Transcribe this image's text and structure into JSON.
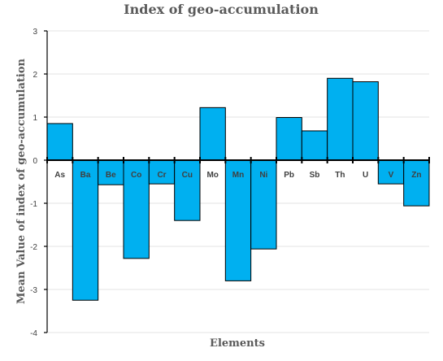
{
  "chart_data": {
    "type": "bar",
    "title": "Index of geo-accumulation",
    "xlabel": "Elements",
    "ylabel": "Mean Value of index of geo-accumulation",
    "categories": [
      "As",
      "Ba",
      "Be",
      "Co",
      "Cr",
      "Cu",
      "Mo",
      "Mn",
      "Ni",
      "Pb",
      "Sb",
      "Th",
      "U",
      "V",
      "Zn"
    ],
    "values": [
      0.85,
      -3.25,
      -0.57,
      -2.28,
      -0.55,
      -1.4,
      1.22,
      -2.8,
      -2.06,
      0.99,
      0.68,
      1.9,
      1.82,
      -0.55,
      -1.06
    ],
    "ylim": [
      -4,
      3
    ],
    "yticks": [
      "3",
      "2",
      "1",
      "0",
      "-1",
      "-2",
      "-3",
      "-4"
    ],
    "bar_color": "#00b0f0",
    "grid": true
  }
}
